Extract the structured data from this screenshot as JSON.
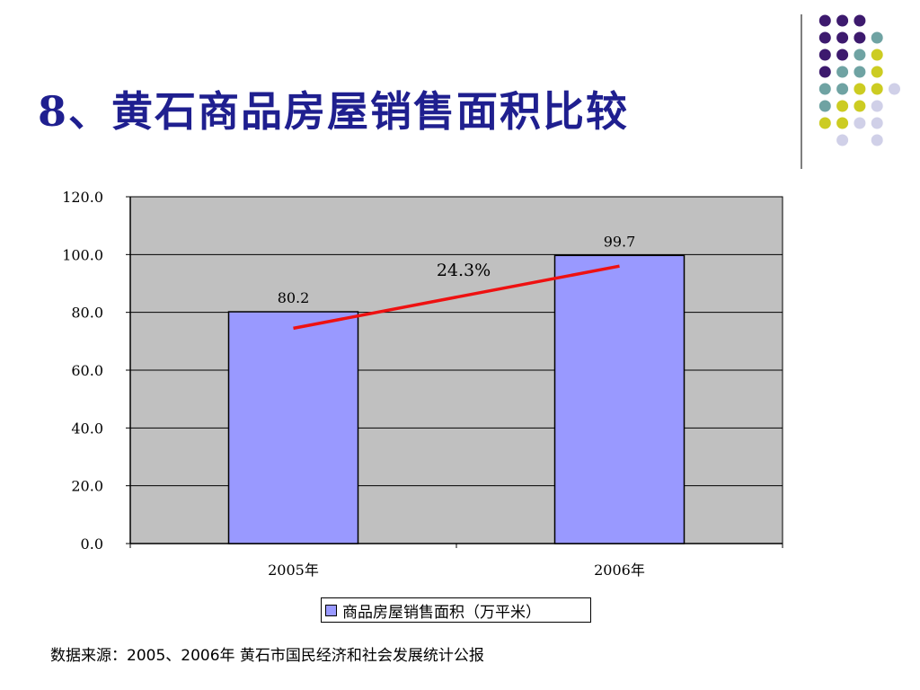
{
  "slide": {
    "title": "8、黄石商品房屋销售面积比较",
    "source_note": "数据来源：2005、2006年 黄石市国民经济和社会发展统计公报"
  },
  "colors": {
    "title": "#1f1f8f",
    "plot_background": "#c0c0c0",
    "bar_fill": "#9999ff",
    "trend_line": "#ee1111",
    "dot_purple": "#3d1a6e",
    "dot_teal": "#6fa3a3",
    "dot_yellow": "#cccc22",
    "dot_lavender": "#d0d0e8"
  },
  "chart_data": {
    "type": "bar",
    "categories": [
      "2005年",
      "2006年"
    ],
    "series": [
      {
        "name": "商品房屋销售面积（万平米）",
        "values": [
          80.2,
          99.7
        ]
      }
    ],
    "data_labels": [
      "80.2",
      "99.7"
    ],
    "y_ticks": [
      "0.0",
      "20.0",
      "40.0",
      "60.0",
      "80.0",
      "100.0",
      "120.0"
    ],
    "ylim": [
      0,
      120
    ],
    "grid": true,
    "legend": "bottom-center",
    "trend_line": {
      "from_value": 74.5,
      "to_value": 96.0
    },
    "annotation": "24.3%"
  }
}
